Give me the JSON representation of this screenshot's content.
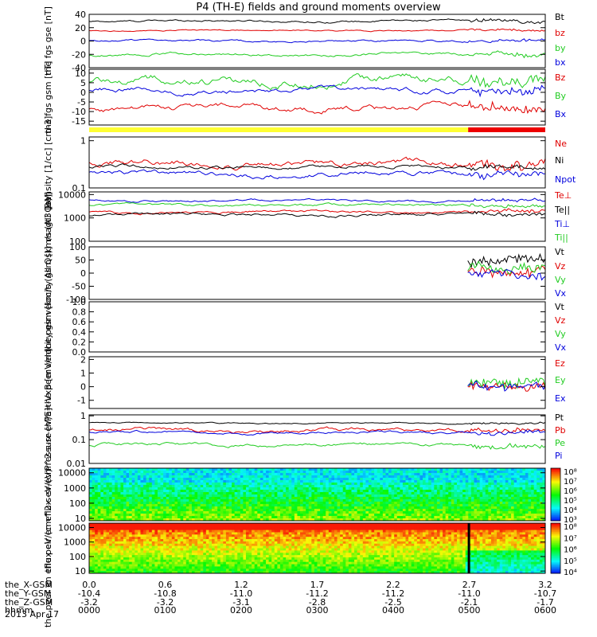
{
  "title": "P4 (TH-E) fields and ground moments overview",
  "date_label": "2013 Apr 17",
  "colors": {
    "black": "#000000",
    "red": "#e00000",
    "green": "#22cc22",
    "blue": "#0000dd"
  },
  "bar_strip": {
    "segments": [
      {
        "until": 0.831,
        "color": "#ffff33"
      },
      {
        "until": 1.0,
        "color": "#ee0000"
      }
    ]
  },
  "chart_data": [
    {
      "type": "line",
      "name": "fgs_gse",
      "ylabel": "the fgs gse [nT]",
      "ylim": [
        -40,
        40
      ],
      "ticks": [
        40,
        20,
        0,
        -20,
        -40
      ],
      "series": [
        {
          "name": "Bt",
          "color": "#000000",
          "base": 30,
          "amp": 3
        },
        {
          "name": "bz",
          "color": "#e00000",
          "base": 16,
          "amp": 2
        },
        {
          "name": "by",
          "color": "#22cc22",
          "base": -20,
          "amp": 4
        },
        {
          "name": "bx",
          "color": "#0000dd",
          "base": 0,
          "amp": 3
        }
      ]
    },
    {
      "type": "line",
      "name": "fgs_gsm",
      "ylabel": "the fgs gsm [nT]",
      "ylim": [
        -17,
        12
      ],
      "ticks": [
        10,
        5,
        0,
        -5,
        -10,
        -15
      ],
      "series": [
        {
          "name": "Bz",
          "color": "#e00000",
          "base": -8,
          "amp": 3
        },
        {
          "name": "By",
          "color": "#22cc22",
          "base": 6,
          "amp": 4
        },
        {
          "name": "Bx",
          "color": "#0000dd",
          "base": 1,
          "amp": 2.5
        }
      ]
    },
    {
      "type": "line",
      "name": "density",
      "ylabel": "Density [1/cc] [cm-3]",
      "log": true,
      "ylim": [
        0.1,
        1.2
      ],
      "ticks": [
        1.0,
        0.1
      ],
      "series": [
        {
          "name": "Ne",
          "color": "#e00000",
          "base": 0.33,
          "amp": 0.12
        },
        {
          "name": "Ni",
          "color": "#000000",
          "base": 0.28,
          "amp": 0.05
        },
        {
          "name": "Npot",
          "color": "#0000dd",
          "base": 0.2,
          "amp": 0.05
        }
      ]
    },
    {
      "type": "line",
      "name": "temperature",
      "ylabel": "magt3 [eV]",
      "log": true,
      "ylim": [
        100,
        13000
      ],
      "ticks": [
        10000,
        1000,
        100
      ],
      "series": [
        {
          "name": "Te⊥",
          "color": "#e00000",
          "base": 1800,
          "amp": 500
        },
        {
          "name": "Te||",
          "color": "#000000",
          "base": 1400,
          "amp": 400
        },
        {
          "name": "Ti⊥",
          "color": "#0000dd",
          "base": 5500,
          "amp": 1200
        },
        {
          "name": "Ti||",
          "color": "#22cc22",
          "base": 3500,
          "amp": 900
        }
      ]
    },
    {
      "type": "line",
      "name": "peir_velocity",
      "ylabel": "the peir velocity gsm [km/s (All Qs)]",
      "ylim": [
        -100,
        100
      ],
      "ticks": [
        100,
        50,
        0,
        -50,
        -100
      ],
      "start_frac": 0.83,
      "series": [
        {
          "name": "Vt",
          "color": "#000000",
          "base": 40,
          "amp": 30
        },
        {
          "name": "Vz",
          "color": "#e00000",
          "base": 5,
          "amp": 25
        },
        {
          "name": "Vy",
          "color": "#22cc22",
          "base": 10,
          "amp": 25
        },
        {
          "name": "Vx",
          "color": "#0000dd",
          "base": 0,
          "amp": 20
        }
      ]
    },
    {
      "type": "line",
      "name": "peer_velocity",
      "ylabel": "the peer velocity gsm [km/s (All Qs)]",
      "ylim": [
        0,
        1
      ],
      "ticks": [
        1.0,
        0.8,
        0.6,
        0.4,
        0.2,
        0.0
      ],
      "series": [
        {
          "name": "Vt",
          "color": "#000000"
        },
        {
          "name": "Vz",
          "color": "#e00000"
        },
        {
          "name": "Vy",
          "color": "#22cc22"
        },
        {
          "name": "Vx",
          "color": "#0000dd"
        }
      ]
    },
    {
      "type": "line",
      "name": "efield",
      "ylabel": "E=-VxB [mV/m]",
      "ylim": [
        -1.6,
        2.2
      ],
      "ticks": [
        2,
        1,
        0,
        -1
      ],
      "start_frac": 0.83,
      "series": [
        {
          "name": "Ez",
          "color": "#e00000",
          "base": 0.1,
          "amp": 0.4
        },
        {
          "name": "Ey",
          "color": "#22cc22",
          "base": 0.3,
          "amp": 0.5
        },
        {
          "name": "Ex",
          "color": "#0000dd",
          "base": 0.1,
          "amp": 0.4
        }
      ]
    },
    {
      "type": "line",
      "name": "pressure",
      "ylabel": "Pressure [nPa]",
      "log": true,
      "ylim": [
        0.01,
        1.1
      ],
      "ticks": [
        1.0,
        0.1,
        0.01
      ],
      "series": [
        {
          "name": "Pt",
          "color": "#000000",
          "base": 0.5,
          "amp": 0.06
        },
        {
          "name": "Pb",
          "color": "#e00000",
          "base": 0.25,
          "amp": 0.1
        },
        {
          "name": "Pe",
          "color": "#22cc22",
          "base": 0.06,
          "amp": 0.02
        },
        {
          "name": "Pi",
          "color": "#0000dd",
          "base": 0.2,
          "amp": 0.05
        }
      ]
    },
    {
      "type": "heatmap",
      "name": "peir_spectrogram",
      "ylabel": "the peir en eflux eV/(cm^2-s-sr-eV)",
      "log": true,
      "ylim": [
        7,
        20000
      ],
      "ticks": [
        10000,
        1000,
        100,
        10
      ],
      "colorbar_ticks": [
        "10⁸",
        "10⁷",
        "10⁶",
        "10⁵",
        "10⁴",
        "10³"
      ]
    },
    {
      "type": "heatmap",
      "name": "peer_spectrogram",
      "ylabel": "the peer en eflux eV/(cm^2-s-sr-eV)",
      "log": true,
      "ylim": [
        7,
        20000
      ],
      "ticks": [
        10000,
        1000,
        100,
        10
      ],
      "colorbar_ticks": [
        "10⁸",
        "10⁷",
        "10⁶",
        "10⁵",
        "10⁴"
      ]
    }
  ],
  "x_axis": {
    "rows": [
      {
        "label": "the_X-GSM",
        "values": [
          "0.0",
          "0.6",
          "1.2",
          "1.7",
          "2.2",
          "2.7",
          "3.2"
        ]
      },
      {
        "label": "the_Y-GSM",
        "values": [
          "-10.4",
          "-10.8",
          "-11.0",
          "-11.2",
          "-11.2",
          "-11.0",
          "-10.7"
        ]
      },
      {
        "label": "the_Z-GSM",
        "values": [
          "-3.2",
          "-3.2",
          "-3.1",
          "-2.8",
          "-2.5",
          "-2.1",
          "-1.7"
        ]
      },
      {
        "label": "hhmm",
        "values": [
          "0000",
          "0100",
          "0200",
          "0300",
          "0400",
          "0500",
          "0600"
        ]
      }
    ]
  }
}
